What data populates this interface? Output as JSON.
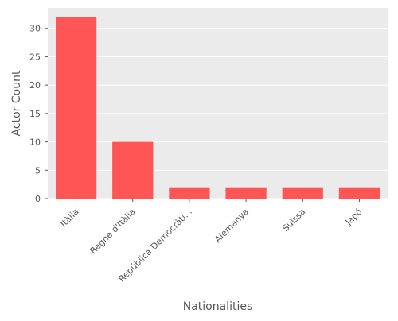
{
  "chart_data": {
    "type": "bar",
    "title": "",
    "xlabel": "Nationalities",
    "ylabel": "Actor Count",
    "categories": [
      "Itàlia",
      "Regne d'Itàlia",
      "República Democràti...",
      "Alemanya",
      "Suïssa",
      "Japó"
    ],
    "values": [
      32,
      10,
      2,
      2,
      2,
      2
    ],
    "ylim": [
      0,
      33.6
    ],
    "yticks": [
      0,
      5,
      10,
      15,
      20,
      25,
      30
    ],
    "grid": true,
    "bar_color": "#ff5555",
    "background_color": "#ebebeb"
  }
}
